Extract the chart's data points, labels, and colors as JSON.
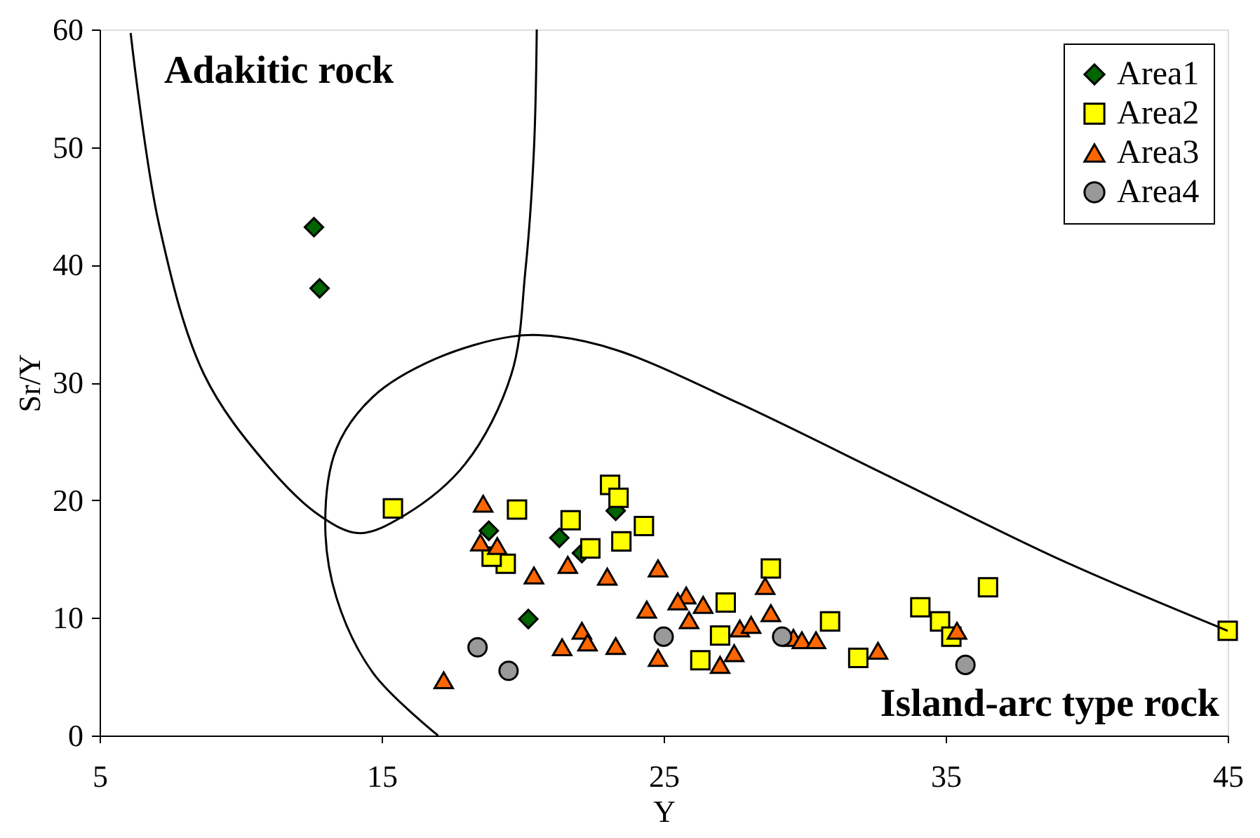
{
  "chart_data": {
    "type": "scatter",
    "xlabel": "Y",
    "ylabel": "Sr/Y",
    "xlim": [
      5,
      45
    ],
    "ylim": [
      0,
      60
    ],
    "xticks": [
      5,
      15,
      25,
      35,
      45
    ],
    "yticks": [
      0,
      10,
      20,
      30,
      40,
      50,
      60
    ],
    "grid": false,
    "legend": "top right",
    "annotations": [
      "Adakitic rock",
      "Island-arc type rock"
    ],
    "series": [
      {
        "name": "Area1",
        "color": "#006400",
        "marker": "diamond",
        "x": [
          12.6,
          12.8,
          18.8,
          21.3,
          22.1,
          23.3,
          20.2
        ],
        "values": [
          43.2,
          38.0,
          17.4,
          16.8,
          15.5,
          19.1,
          9.9
        ]
      },
      {
        "name": "Area2",
        "color": "#ffff00",
        "marker": "square",
        "x": [
          15.4,
          19.8,
          21.7,
          23.1,
          23.4,
          24.3,
          23.5,
          19.4,
          18.9,
          22.4,
          28.8,
          27.2,
          27.0,
          26.3,
          30.9,
          31.9,
          34.1,
          34.8,
          35.2,
          36.5,
          45
        ],
        "values": [
          19.3,
          19.2,
          18.3,
          21.3,
          20.2,
          17.8,
          16.5,
          14.6,
          15.2,
          15.9,
          14.2,
          11.3,
          8.5,
          6.4,
          9.7,
          6.6,
          10.9,
          9.7,
          8.4,
          12.6,
          8.9
        ]
      },
      {
        "name": "Area3",
        "color": "#ff6600",
        "marker": "triangle",
        "x": [
          18.6,
          18.5,
          19.1,
          20.4,
          21.6,
          23.0,
          22.1,
          22.3,
          21.4,
          23.3,
          17.2,
          24.8,
          24.4,
          24.8,
          25.8,
          25.5,
          26.4,
          25.9,
          27.0,
          27.5,
          27.7,
          28.1,
          28.6,
          28.8,
          29.6,
          29.9,
          30.4,
          32.6,
          35.4
        ],
        "values": [
          19.7,
          16.4,
          16.1,
          13.6,
          14.5,
          13.5,
          8.9,
          7.9,
          7.5,
          7.6,
          4.7,
          14.2,
          10.7,
          6.6,
          11.9,
          11.4,
          11.1,
          9.8,
          6.0,
          7.0,
          9.1,
          9.4,
          12.7,
          10.4,
          8.3,
          8.1,
          8.1,
          7.2,
          8.9
        ]
      },
      {
        "name": "Area4",
        "color": "#999999",
        "marker": "circle",
        "x": [
          18.4,
          19.5,
          25.0,
          29.2,
          35.7
        ],
        "values": [
          7.5,
          5.5,
          8.4,
          8.4,
          6.0
        ]
      },
      {
        "type": "line",
        "color": "#000000",
        "marker": "none",
        "x": [
          6.1,
          7.1,
          8.7,
          10.9,
          12.8,
          14.2,
          15.8,
          17.97,
          19.6,
          20.1,
          20.4,
          20.5
        ],
        "values": [
          59.7,
          43.5,
          30.7,
          23.1,
          18.7,
          17.2,
          18.7,
          23.1,
          30.7,
          39.6,
          49.8,
          60
        ]
      },
      {
        "type": "line",
        "color": "#000000",
        "marker": "none",
        "x": [
          17.0,
          14.7,
          13.4,
          13.0,
          13.4,
          14.7,
          16.9,
          19.6,
          21.2,
          23.4,
          27.7,
          33.1,
          39.1,
          45
        ],
        "values": [
          0,
          5.3,
          11.7,
          18.0,
          24.4,
          28.8,
          32.0,
          33.9,
          33.9,
          32.7,
          28.2,
          21.9,
          14.9,
          8.9
        ]
      }
    ]
  }
}
